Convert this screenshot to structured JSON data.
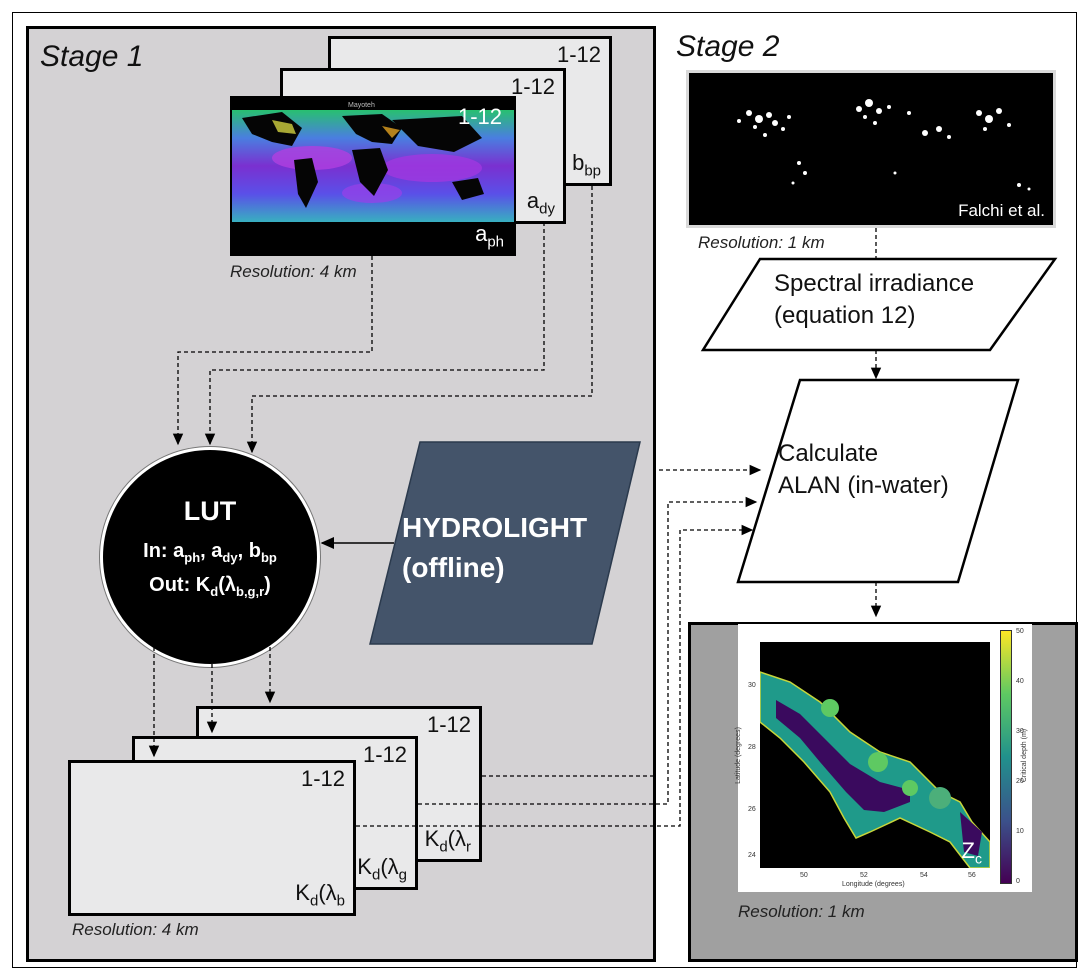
{
  "stage1": {
    "label": "Stage 1",
    "input_cards": [
      {
        "number": "1-12",
        "param": "b",
        "param_sub": "bp"
      },
      {
        "number": "1-12",
        "param": "a",
        "param_sub": "dy"
      },
      {
        "number": "1-12",
        "param": "a",
        "param_sub": "ph"
      }
    ],
    "map_tiny_text": "Mayoteh",
    "input_resolution": "Resolution: 4 km",
    "lut": {
      "title": "LUT",
      "in_prefix": "In: ",
      "in_params": [
        {
          "base": "a",
          "sub": "ph",
          "sep": ", "
        },
        {
          "base": "a",
          "sub": "dy",
          "sep": ", "
        },
        {
          "base": "b",
          "sub": "bp",
          "sep": ""
        }
      ],
      "out_prefix": "Out: ",
      "out_base": "K",
      "out_sub": "d",
      "out_arg_open": "(λ",
      "out_arg_sub": "b,g,r",
      "out_arg_close": ")"
    },
    "hydrolight": {
      "line1": "HYDROLIGHT",
      "line2": "(offline)"
    },
    "output_cards": [
      {
        "number": "1-12",
        "label_base": "K",
        "label_sub": "d",
        "label_open": "(λ",
        "label_arg": "r",
        "label_close": ""
      },
      {
        "number": "1-12",
        "label_base": "K",
        "label_sub": "d",
        "label_open": "(λ",
        "label_arg": "g",
        "label_close": ""
      },
      {
        "number": "1-12",
        "label_base": "K",
        "label_sub": "d",
        "label_open": "(λ",
        "label_arg": "b",
        "label_close": ""
      }
    ],
    "output_resolution": "Resolution: 4 km"
  },
  "stage2": {
    "label": "Stage 2",
    "light_map_credit": "Falchi et al.",
    "light_resolution": "Resolution: 1 km",
    "spectral": {
      "line1": "Spectral irradiance",
      "line2": "(equation 12)"
    },
    "calculate": {
      "line1": "Calculate",
      "line2": "ALAN (in-water)"
    },
    "result": {
      "label_base": "Z",
      "label_sub": "c",
      "resolution": "Resolution: 1 km",
      "y_ticks": [
        "30",
        "28",
        "26",
        "24"
      ],
      "x_ticks": [
        "50",
        "52",
        "54",
        "56"
      ],
      "cbar_ticks": [
        "50",
        "40",
        "30",
        "20",
        "10",
        "0"
      ],
      "xlabel": "Longitude (degrees)",
      "ylabel": "Latitude (degrees)",
      "cbar_label": "Critical depth (m)"
    }
  },
  "colors": {
    "stage1_bg": "#d4d2d4",
    "hydrolight_fill": "#44546a",
    "lut_fill": "#000000",
    "card_fill": "#e9e9ea",
    "result_bg": "#a0a0a0"
  }
}
